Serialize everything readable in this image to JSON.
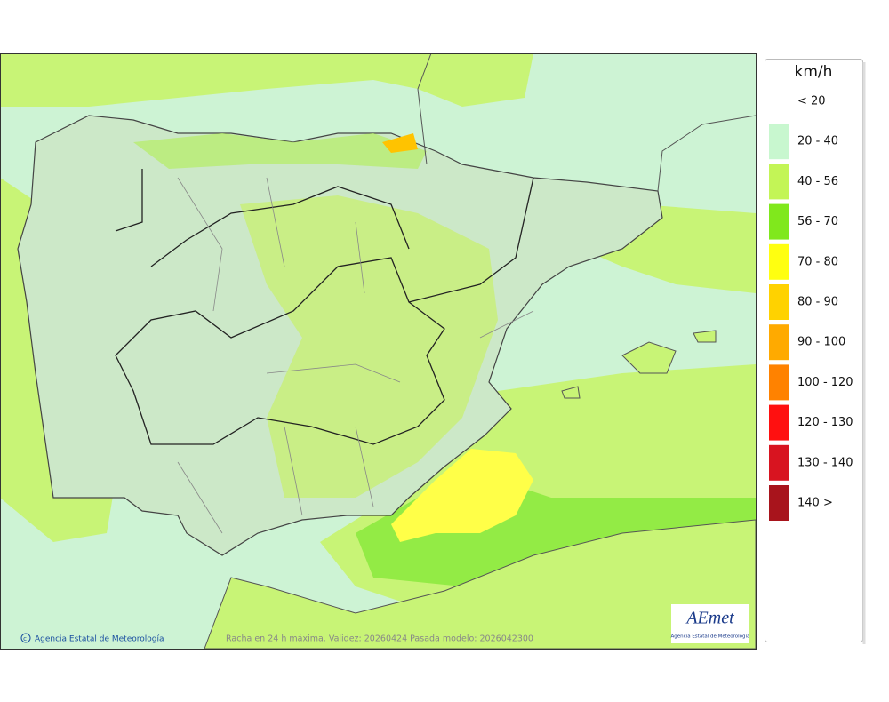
{
  "legend": {
    "unit": "km/h",
    "items": [
      {
        "label": "< 20",
        "color": "#ffffff"
      },
      {
        "label": "20 - 40",
        "color": "#c8f7cf"
      },
      {
        "label": "40 - 56",
        "color": "#c3f556"
      },
      {
        "label": "56 - 70",
        "color": "#80e81c"
      },
      {
        "label": "70 - 80",
        "color": "#ffff10"
      },
      {
        "label": "80 - 90",
        "color": "#ffd200"
      },
      {
        "label": "90 - 100",
        "color": "#ffaa00"
      },
      {
        "label": "100 - 120",
        "color": "#ff8200"
      },
      {
        "label": "120 - 130",
        "color": "#ff1010"
      },
      {
        "label": "130 - 140",
        "color": "#d81420"
      },
      {
        "label": "140 >",
        "color": "#a8141c"
      }
    ]
  },
  "footer": {
    "credit": "Agencia Estatal de Meteorología",
    "caption": "Racha en 24 h máxima. Validez: 20260424 Pasada modelo: 2026042300"
  },
  "logo": {
    "name": "AEmet",
    "subtitle": "Agencia Estatal de Meteorología"
  }
}
